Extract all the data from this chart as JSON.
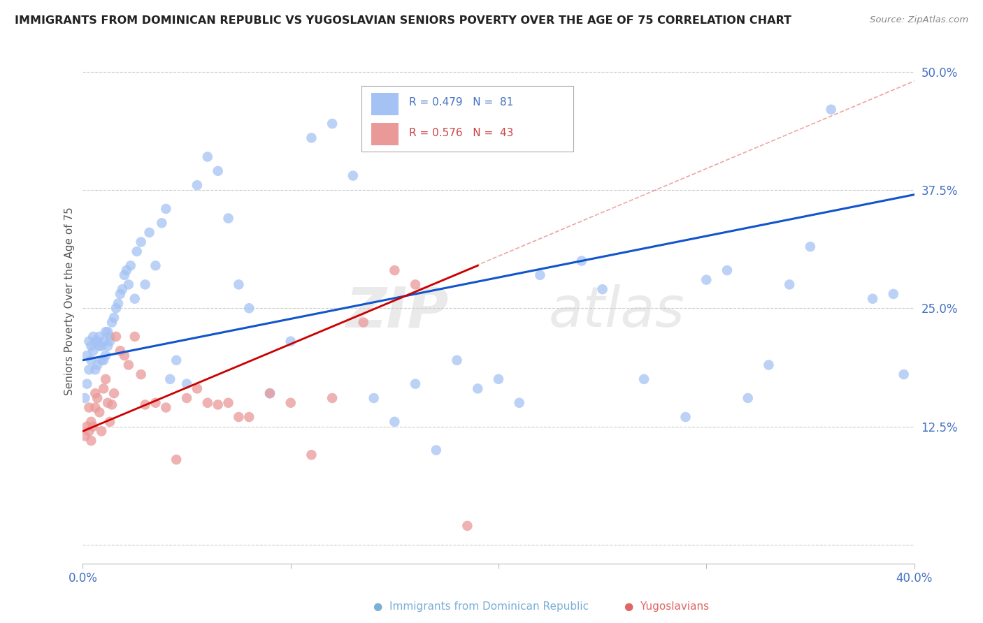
{
  "title": "IMMIGRANTS FROM DOMINICAN REPUBLIC VS YUGOSLAVIAN SENIORS POVERTY OVER THE AGE OF 75 CORRELATION CHART",
  "source": "Source: ZipAtlas.com",
  "ylabel": "Seniors Poverty Over the Age of 75",
  "yticks": [
    0.0,
    0.125,
    0.25,
    0.375,
    0.5
  ],
  "ytick_labels": [
    "",
    "12.5%",
    "25.0%",
    "37.5%",
    "50.0%"
  ],
  "xlim": [
    0.0,
    0.4
  ],
  "ylim": [
    -0.02,
    0.535
  ],
  "blue_color": "#a4c2f4",
  "pink_color": "#ea9999",
  "line_blue_color": "#1155cc",
  "line_pink_color": "#cc0000",
  "line_dashed_color": "#cc0000",
  "blue_points_x": [
    0.001,
    0.002,
    0.002,
    0.003,
    0.003,
    0.004,
    0.004,
    0.005,
    0.005,
    0.006,
    0.006,
    0.007,
    0.007,
    0.008,
    0.008,
    0.009,
    0.009,
    0.01,
    0.01,
    0.011,
    0.011,
    0.012,
    0.012,
    0.013,
    0.013,
    0.014,
    0.015,
    0.016,
    0.017,
    0.018,
    0.019,
    0.02,
    0.021,
    0.022,
    0.023,
    0.025,
    0.026,
    0.028,
    0.03,
    0.032,
    0.035,
    0.038,
    0.04,
    0.042,
    0.045,
    0.05,
    0.055,
    0.06,
    0.065,
    0.07,
    0.075,
    0.08,
    0.09,
    0.1,
    0.11,
    0.12,
    0.13,
    0.14,
    0.15,
    0.16,
    0.17,
    0.18,
    0.19,
    0.2,
    0.21,
    0.22,
    0.24,
    0.25,
    0.27,
    0.29,
    0.3,
    0.31,
    0.32,
    0.33,
    0.34,
    0.35,
    0.36,
    0.38,
    0.39,
    0.395
  ],
  "blue_points_y": [
    0.155,
    0.17,
    0.2,
    0.185,
    0.215,
    0.21,
    0.195,
    0.205,
    0.22,
    0.185,
    0.215,
    0.19,
    0.215,
    0.21,
    0.22,
    0.195,
    0.21,
    0.195,
    0.215,
    0.2,
    0.225,
    0.21,
    0.225,
    0.22,
    0.215,
    0.235,
    0.24,
    0.25,
    0.255,
    0.265,
    0.27,
    0.285,
    0.29,
    0.275,
    0.295,
    0.26,
    0.31,
    0.32,
    0.275,
    0.33,
    0.295,
    0.34,
    0.355,
    0.175,
    0.195,
    0.17,
    0.38,
    0.41,
    0.395,
    0.345,
    0.275,
    0.25,
    0.16,
    0.215,
    0.43,
    0.445,
    0.39,
    0.155,
    0.13,
    0.17,
    0.1,
    0.195,
    0.165,
    0.175,
    0.15,
    0.285,
    0.3,
    0.27,
    0.175,
    0.135,
    0.28,
    0.29,
    0.155,
    0.19,
    0.275,
    0.315,
    0.46,
    0.26,
    0.265,
    0.18
  ],
  "pink_points_x": [
    0.001,
    0.002,
    0.003,
    0.003,
    0.004,
    0.004,
    0.005,
    0.006,
    0.006,
    0.007,
    0.008,
    0.009,
    0.01,
    0.011,
    0.012,
    0.013,
    0.014,
    0.015,
    0.016,
    0.018,
    0.02,
    0.022,
    0.025,
    0.028,
    0.03,
    0.035,
    0.04,
    0.045,
    0.05,
    0.055,
    0.06,
    0.065,
    0.07,
    0.075,
    0.08,
    0.09,
    0.1,
    0.11,
    0.12,
    0.135,
    0.15,
    0.16,
    0.185
  ],
  "pink_points_y": [
    0.115,
    0.125,
    0.12,
    0.145,
    0.11,
    0.13,
    0.125,
    0.145,
    0.16,
    0.155,
    0.14,
    0.12,
    0.165,
    0.175,
    0.15,
    0.13,
    0.148,
    0.16,
    0.22,
    0.205,
    0.2,
    0.19,
    0.22,
    0.18,
    0.148,
    0.15,
    0.145,
    0.09,
    0.155,
    0.165,
    0.15,
    0.148,
    0.15,
    0.135,
    0.135,
    0.16,
    0.15,
    0.095,
    0.155,
    0.235,
    0.29,
    0.275,
    0.02
  ],
  "blue_line_x": [
    0.0,
    0.4
  ],
  "blue_line_y": [
    0.195,
    0.37
  ],
  "pink_line_x": [
    0.0,
    0.19
  ],
  "pink_line_y": [
    0.12,
    0.295
  ],
  "dashed_line_x": [
    0.0,
    0.4
  ],
  "dashed_line_y": [
    0.12,
    0.49
  ]
}
